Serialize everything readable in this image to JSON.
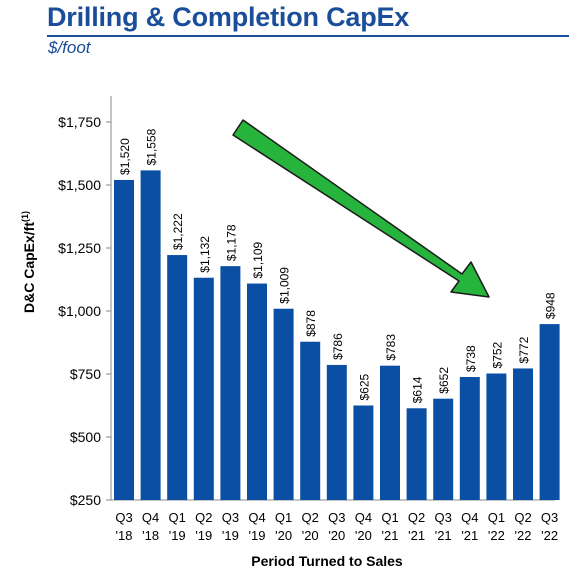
{
  "header": {
    "title": "Drilling & Completion CapEx",
    "subtitle": "$/foot"
  },
  "colors": {
    "title": "#1a4e9a",
    "bar": "#0a4fa3",
    "arrow_fill": "#27b43c",
    "arrow_stroke": "#1b1b1b"
  },
  "annotation": {
    "type": "arrow",
    "direction": "down-right",
    "color": "green"
  },
  "chart_data": {
    "type": "bar",
    "ylabel": "D&C CapEx/ft",
    "ylabel_superscript": "(1)",
    "xlabel": "Period Turned to Sales",
    "ylim": [
      250,
      1750
    ],
    "yticks": [
      "$250",
      "$500",
      "$750",
      "$1,000",
      "$1,250",
      "$1,500",
      "$1,750"
    ],
    "ytick_values": [
      250,
      500,
      750,
      1000,
      1250,
      1500,
      1750
    ],
    "categories": [
      [
        "Q3",
        "'18"
      ],
      [
        "Q4",
        "'18"
      ],
      [
        "Q1",
        "'19"
      ],
      [
        "Q2",
        "'19"
      ],
      [
        "Q3",
        "'19"
      ],
      [
        "Q4",
        "'19"
      ],
      [
        "Q1",
        "'20"
      ],
      [
        "Q2",
        "'20"
      ],
      [
        "Q3",
        "'20"
      ],
      [
        "Q4",
        "'20"
      ],
      [
        "Q1",
        "'21"
      ],
      [
        "Q2",
        "'21"
      ],
      [
        "Q3",
        "'21"
      ],
      [
        "Q4",
        "'21"
      ],
      [
        "Q1",
        "'22"
      ],
      [
        "Q2",
        "'22"
      ],
      [
        "Q3",
        "'22"
      ]
    ],
    "values": [
      1520,
      1558,
      1222,
      1132,
      1178,
      1109,
      1009,
      878,
      786,
      625,
      783,
      614,
      652,
      738,
      752,
      772,
      948
    ],
    "data_labels": [
      "$1,520",
      "$1,558",
      "$1,222",
      "$1,132",
      "$1,178",
      "$1,109",
      "$1,009",
      "$878",
      "$786",
      "$625",
      "$783",
      "$614",
      "$652",
      "$738",
      "$752",
      "$772",
      "$948"
    ],
    "grid": false
  }
}
